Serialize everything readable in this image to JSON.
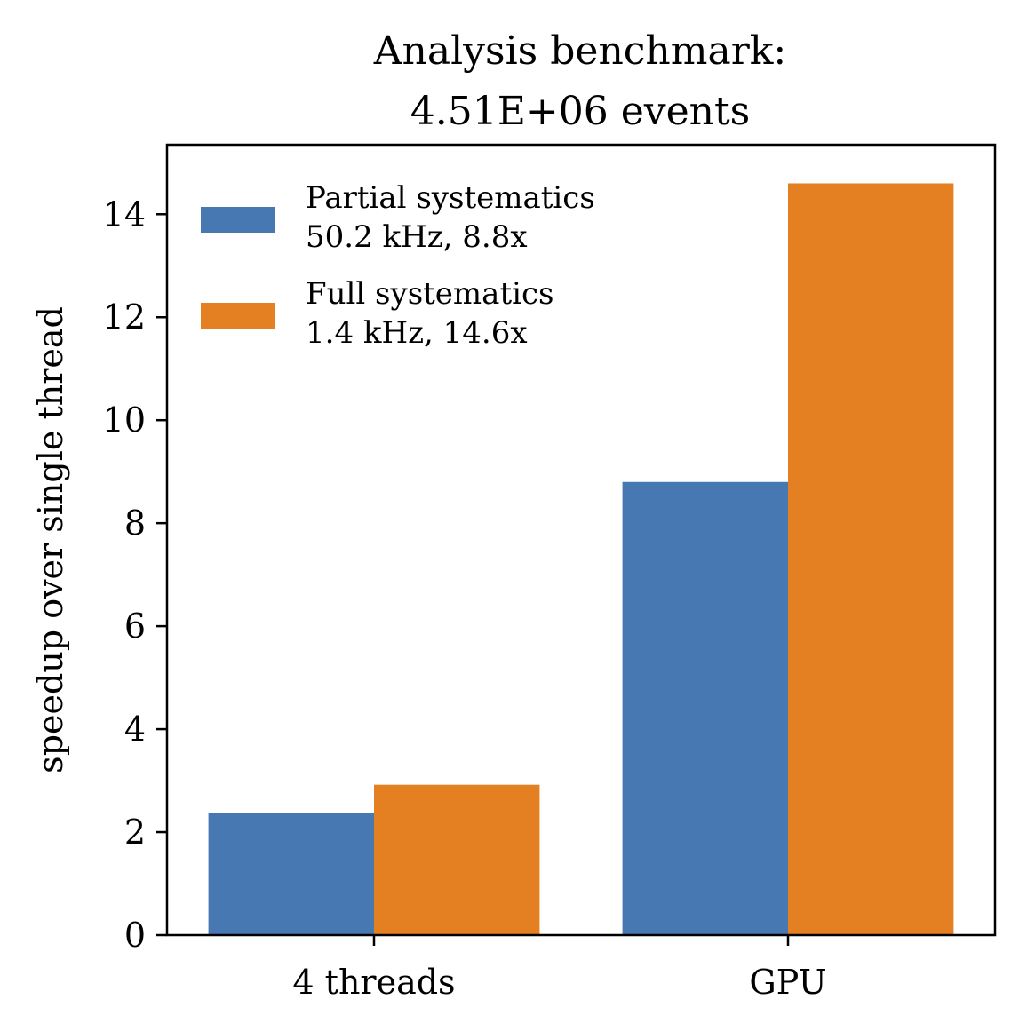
{
  "chart_data": {
    "type": "bar",
    "title_lines": [
      "Analysis benchmark:",
      "4.51E+06 events"
    ],
    "xlabel": "",
    "ylabel": "speedup over single thread",
    "categories": [
      "4 threads",
      "GPU"
    ],
    "ylim": [
      0,
      15.35
    ],
    "yticks": [
      0,
      2,
      4,
      6,
      8,
      10,
      12,
      14
    ],
    "grid": false,
    "legend_position": "top-left",
    "series": [
      {
        "name": "Partial systematics",
        "legend_lines": [
          "Partial systematics",
          "50.2 kHz, 8.8x"
        ],
        "values": [
          2.37,
          8.8
        ],
        "color": "#4878b2"
      },
      {
        "name": "Full systematics",
        "legend_lines": [
          "Full systematics",
          "1.4 kHz, 14.6x"
        ],
        "values": [
          2.92,
          14.6
        ],
        "color": "#e47f22"
      }
    ]
  }
}
